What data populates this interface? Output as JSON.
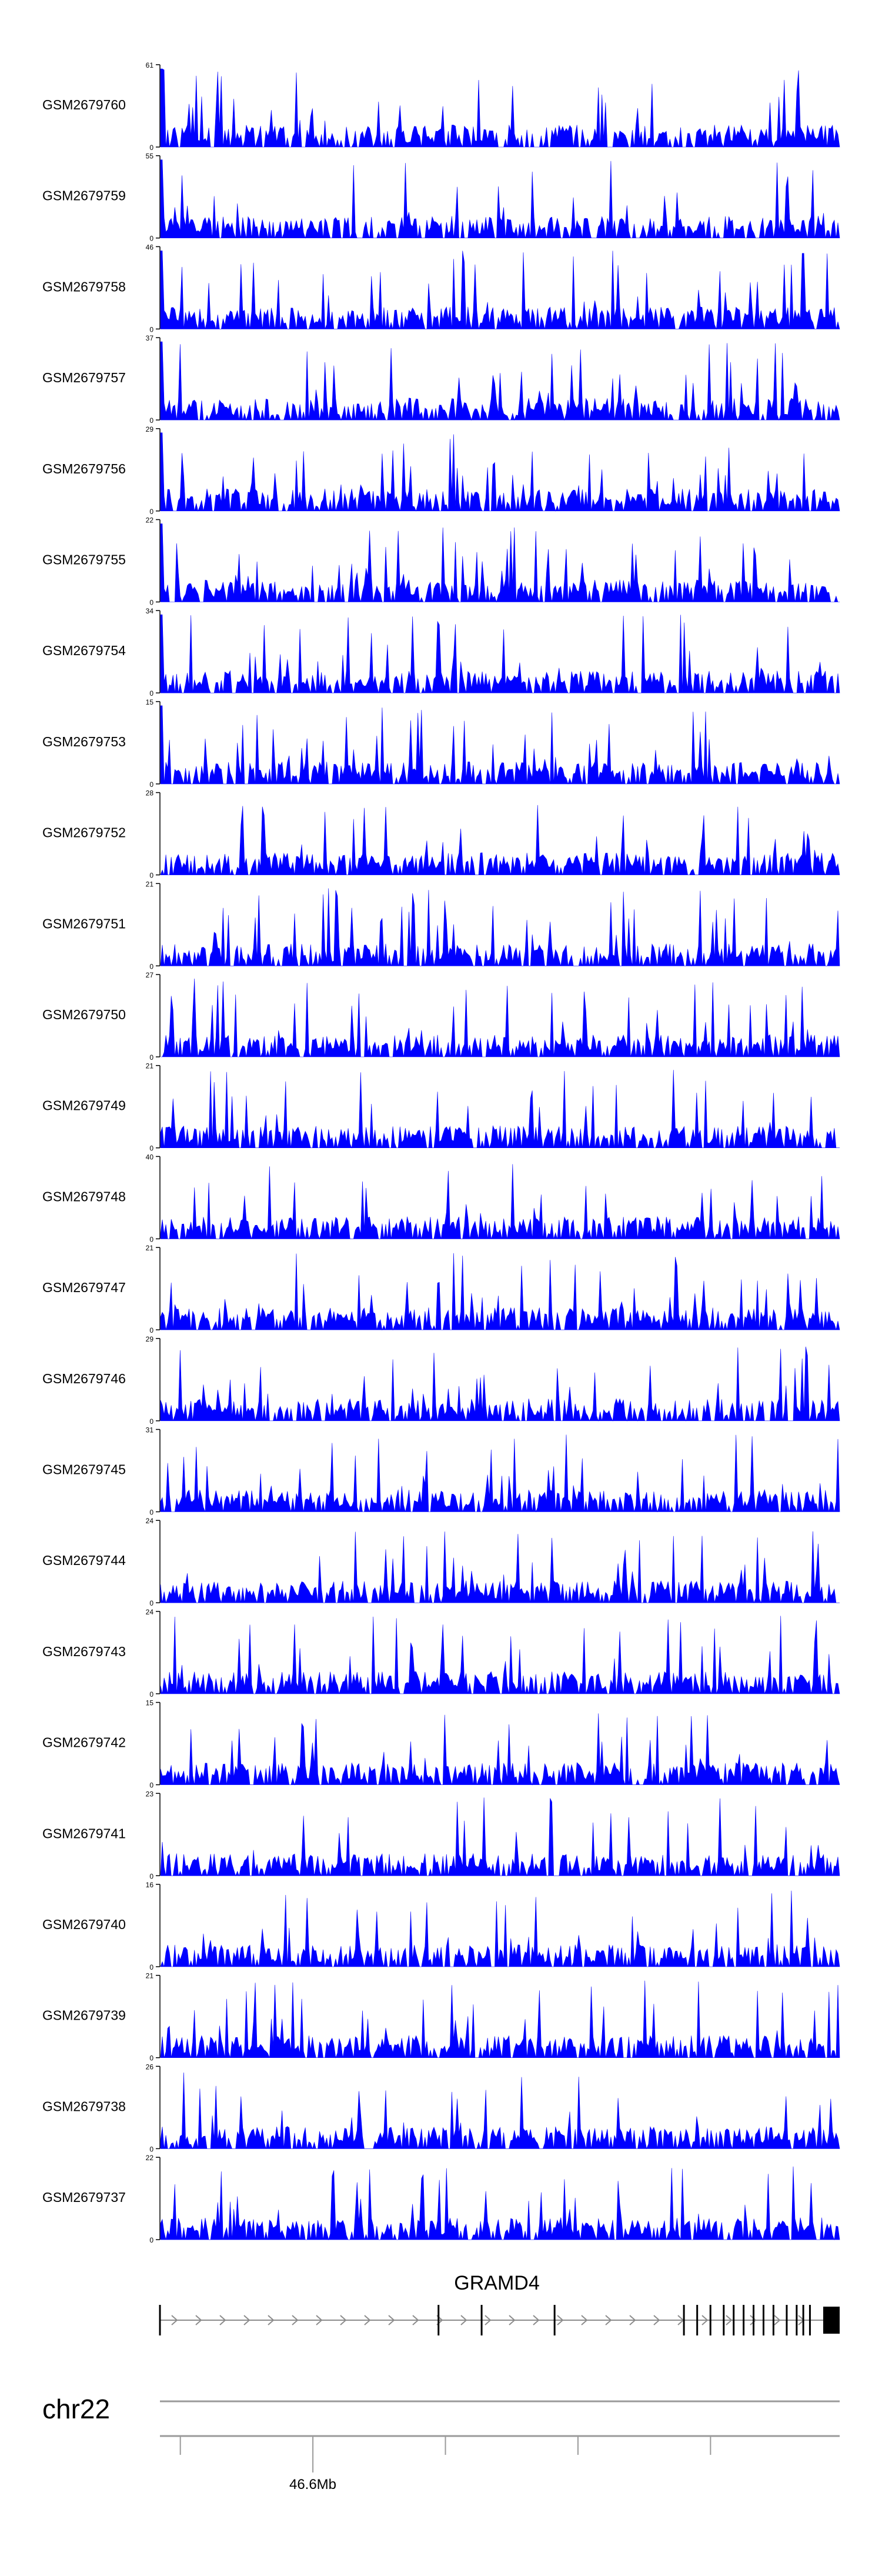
{
  "chart_data": {
    "type": "area",
    "title": "",
    "description_type": "genome-browser coverage tracks",
    "colors": {
      "signal": "#0000ff",
      "axis": "#000000",
      "gene": "#000000",
      "gene_intron": "#8c8c8c",
      "scale_line": "#9a9a9a"
    },
    "tracks": [
      {
        "name": "GSM2679760",
        "ymax": 61,
        "ymin": 0,
        "seed": 1
      },
      {
        "name": "GSM2679759",
        "ymax": 55,
        "ymin": 0,
        "seed": 2
      },
      {
        "name": "GSM2679758",
        "ymax": 46,
        "ymin": 0,
        "seed": 3
      },
      {
        "name": "GSM2679757",
        "ymax": 37,
        "ymin": 0,
        "seed": 4
      },
      {
        "name": "GSM2679756",
        "ymax": 29,
        "ymin": 0,
        "seed": 5
      },
      {
        "name": "GSM2679755",
        "ymax": 22,
        "ymin": 0,
        "seed": 6
      },
      {
        "name": "GSM2679754",
        "ymax": 34,
        "ymin": 0,
        "seed": 7
      },
      {
        "name": "GSM2679753",
        "ymax": 15,
        "ymin": 0,
        "seed": 8
      },
      {
        "name": "GSM2679752",
        "ymax": 28,
        "ymin": 0,
        "seed": 9
      },
      {
        "name": "GSM2679751",
        "ymax": 21,
        "ymin": 0,
        "seed": 10
      },
      {
        "name": "GSM2679750",
        "ymax": 27,
        "ymin": 0,
        "seed": 11
      },
      {
        "name": "GSM2679749",
        "ymax": 21,
        "ymin": 0,
        "seed": 12
      },
      {
        "name": "GSM2679748",
        "ymax": 40,
        "ymin": 0,
        "seed": 13
      },
      {
        "name": "GSM2679747",
        "ymax": 21,
        "ymin": 0,
        "seed": 14
      },
      {
        "name": "GSM2679746",
        "ymax": 29,
        "ymin": 0,
        "seed": 15
      },
      {
        "name": "GSM2679745",
        "ymax": 31,
        "ymin": 0,
        "seed": 16
      },
      {
        "name": "GSM2679744",
        "ymax": 24,
        "ymin": 0,
        "seed": 17
      },
      {
        "name": "GSM2679743",
        "ymax": 24,
        "ymin": 0,
        "seed": 18
      },
      {
        "name": "GSM2679742",
        "ymax": 15,
        "ymin": 0,
        "seed": 19
      },
      {
        "name": "GSM2679741",
        "ymax": 23,
        "ymin": 0,
        "seed": 20
      },
      {
        "name": "GSM2679740",
        "ymax": 16,
        "ymin": 0,
        "seed": 21
      },
      {
        "name": "GSM2679739",
        "ymax": 21,
        "ymin": 0,
        "seed": 22
      },
      {
        "name": "GSM2679738",
        "ymax": 26,
        "ymin": 0,
        "seed": 23
      },
      {
        "name": "GSM2679737",
        "ymax": 22,
        "ymin": 0,
        "seed": 24
      }
    ],
    "gene": {
      "name": "GRAMD4",
      "exons_fraction": [
        0.0,
        0.42,
        0.485,
        0.595,
        0.79,
        0.81,
        0.83,
        0.85,
        0.865,
        0.88,
        0.895,
        0.91,
        0.925,
        0.945,
        0.96,
        0.97,
        0.98
      ],
      "strand": "+"
    },
    "chromosome": "chr22",
    "scale": {
      "label": "46.6Mb",
      "labeled_tick_fraction": 0.225,
      "tick_fractions": [
        0.03,
        0.225,
        0.42,
        0.615,
        0.81
      ]
    }
  }
}
